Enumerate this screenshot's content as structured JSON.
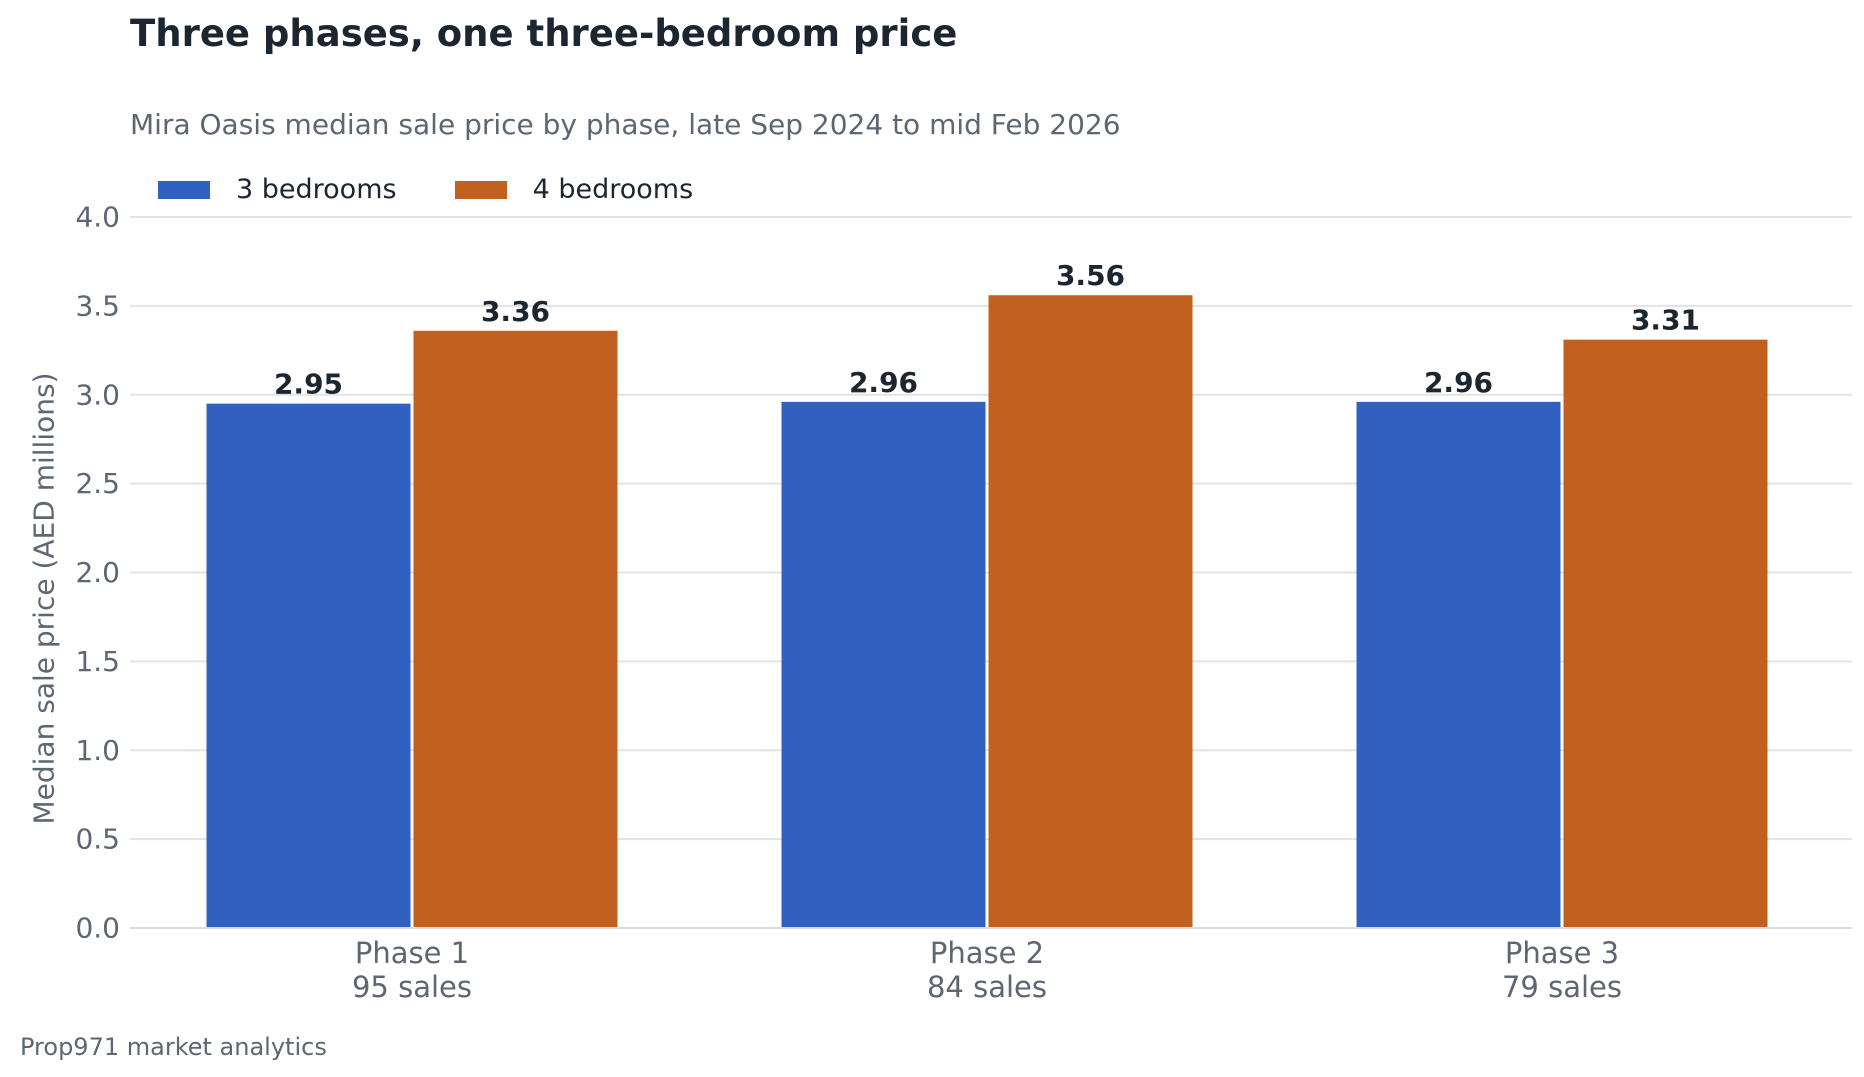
{
  "chart_data": {
    "type": "bar",
    "title": "Three phases, one three-bedroom price",
    "subtitle": "Mira Oasis median sale price by phase, late Sep 2024 to mid Feb 2026",
    "ylabel": "Median sale price (AED millions)",
    "xlabel": "",
    "categories": [
      "Phase 1",
      "Phase 2",
      "Phase 3"
    ],
    "category_sublabels": [
      "95 sales",
      "84 sales",
      "79 sales"
    ],
    "series": [
      {
        "name": "3 bedrooms",
        "color": "#3060c0",
        "values": [
          2.95,
          2.96,
          2.96
        ],
        "labels": [
          "2.95",
          "2.96",
          "2.96"
        ]
      },
      {
        "name": "4 bedrooms",
        "color": "#c2611f",
        "values": [
          3.36,
          3.56,
          3.31
        ],
        "labels": [
          "3.36",
          "3.56",
          "3.31"
        ]
      }
    ],
    "ylim": [
      0,
      4
    ],
    "yticks": [
      "0.0",
      "0.5",
      "1.0",
      "1.5",
      "2.0",
      "2.5",
      "3.0",
      "3.5",
      "4.0"
    ],
    "grid": true,
    "legend": "top-left"
  },
  "footer": {
    "source": "Prop971 market analytics"
  }
}
